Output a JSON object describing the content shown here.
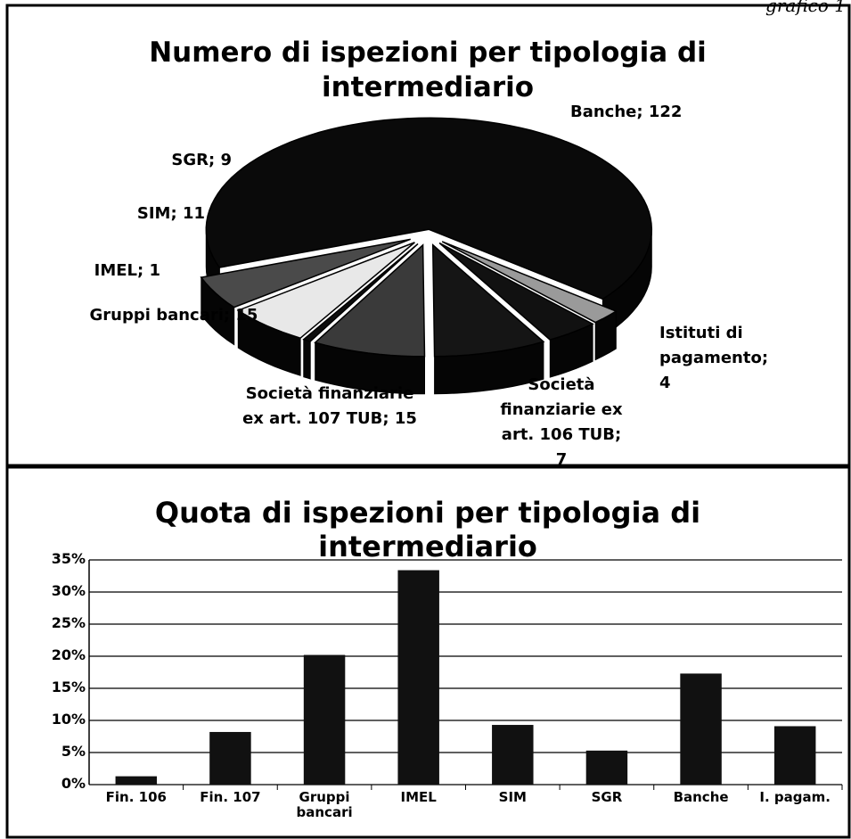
{
  "header": "grafico 1",
  "chart_data": [
    {
      "type": "pie3d",
      "title": "Numero di ispezioni per tipologia di intermediario",
      "label_separator": "; ",
      "categories": [
        "Banche",
        "Istituti di pagamento",
        "Società finanziarie ex art. 106 TUB",
        "Società finanziarie ex art. 107 TUB",
        "Gruppi bancari",
        "IMEL",
        "SIM",
        "SGR"
      ],
      "values": [
        122,
        4,
        7,
        15,
        15,
        1,
        11,
        9
      ],
      "colors": [
        "#0a0a0a",
        "#9a9a9a",
        "#111111",
        "#151515",
        "#3a3a3a",
        "#0d0d0d",
        "#e8e8e8",
        "#4a4a4a"
      ]
    },
    {
      "type": "bar",
      "title": "Quota di ispezioni per tipologia di intermediario",
      "categories": [
        "Fin. 106",
        "Fin. 107",
        "Gruppi bancari",
        "IMEL",
        "SIM",
        "SGR",
        "Banche",
        "I. pagam."
      ],
      "values": [
        1.3,
        8.2,
        20.2,
        33.4,
        9.3,
        5.3,
        17.3,
        9.1
      ],
      "color": "#111111",
      "ylim": [
        0,
        35
      ],
      "yticks": [
        {
          "value": 0,
          "label": "0%"
        },
        {
          "value": 5,
          "label": "5%"
        },
        {
          "value": 10,
          "label": "10%"
        },
        {
          "value": 15,
          "label": "15%"
        },
        {
          "value": 20,
          "label": "20%"
        },
        {
          "value": 25,
          "label": "25%"
        },
        {
          "value": 30,
          "label": "30%"
        },
        {
          "value": 35,
          "label": "35%"
        }
      ],
      "grid": true
    }
  ]
}
